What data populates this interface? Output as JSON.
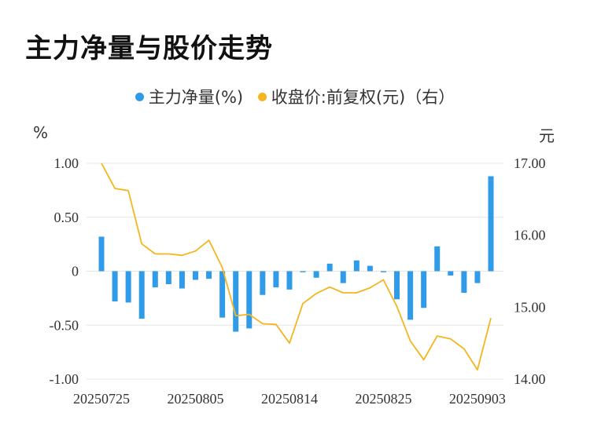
{
  "title": "主力净量与股价走势",
  "legend": {
    "bar_label": "主力净量(%)",
    "line_label": "收盘价:前复权(元)（右）"
  },
  "colors": {
    "bar": "#2f9be9",
    "line": "#f5b51f",
    "grid": "#e6e6e6",
    "text": "#333333"
  },
  "chart_data": {
    "type": "bar",
    "title": "主力净量与股价走势",
    "ylabel_left": "%",
    "ylabel_right": "元",
    "left_axis": {
      "min": -1.0,
      "max": 1.0,
      "ticks": [
        "1.00",
        "0.50",
        "0",
        "-0.50",
        "-1.00"
      ],
      "tick_values": [
        1.0,
        0.5,
        0,
        -0.5,
        -1.0
      ]
    },
    "right_axis": {
      "min": 14.0,
      "max": 17.0,
      "ticks": [
        "17.00",
        "16.00",
        "15.00",
        "14.00"
      ],
      "tick_values": [
        17.0,
        16.0,
        15.0,
        14.0
      ]
    },
    "x_tick_labels": [
      "20250725",
      "20250805",
      "20250814",
      "20250825",
      "20250903"
    ],
    "x_tick_indices": [
      0,
      7,
      14,
      21,
      28
    ],
    "grid": true,
    "legend_position": "top-center",
    "series": [
      {
        "name": "主力净量(%)",
        "kind": "bar",
        "axis": "left",
        "values": [
          0.32,
          -0.28,
          -0.29,
          -0.44,
          -0.15,
          -0.12,
          -0.16,
          -0.08,
          -0.07,
          -0.43,
          -0.56,
          -0.53,
          -0.22,
          -0.15,
          -0.17,
          -0.01,
          -0.06,
          0.07,
          -0.11,
          0.1,
          0.05,
          -0.01,
          -0.26,
          -0.45,
          -0.34,
          0.23,
          -0.04,
          -0.2,
          -0.11,
          0.88
        ]
      },
      {
        "name": "收盘价:前复权(元)（右）",
        "kind": "line",
        "axis": "right",
        "values": [
          17.0,
          16.65,
          16.62,
          15.88,
          15.74,
          15.74,
          15.72,
          15.78,
          15.93,
          15.55,
          14.88,
          14.9,
          14.77,
          14.76,
          14.5,
          15.05,
          15.19,
          15.28,
          15.2,
          15.2,
          15.27,
          15.38,
          15.01,
          14.53,
          14.27,
          14.6,
          14.56,
          14.42,
          14.13,
          14.85
        ]
      }
    ]
  }
}
